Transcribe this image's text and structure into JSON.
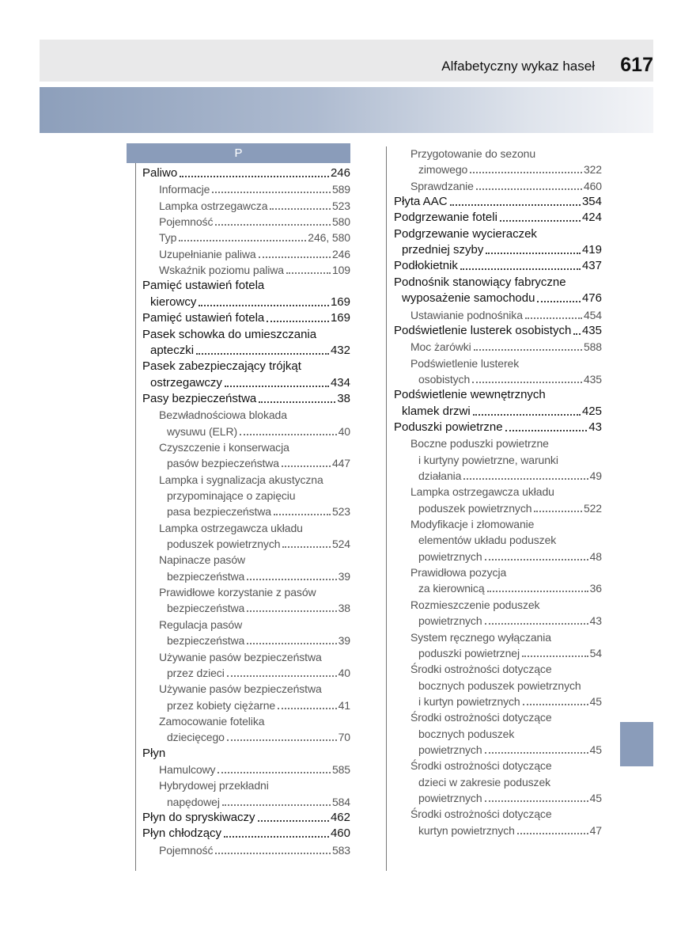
{
  "header": {
    "title": "Alfabetyczny wykaz haseł",
    "page": "617"
  },
  "section": "P",
  "columns": [
    {
      "entries": [
        {
          "text": [
            "Paliwo"
          ],
          "page": "246",
          "sub": [
            {
              "text": [
                "Informacje"
              ],
              "page": "589"
            },
            {
              "text": [
                "Lampka ostrzegawcza"
              ],
              "page": "523"
            },
            {
              "text": [
                "Pojemność"
              ],
              "page": "580"
            },
            {
              "text": [
                "Typ"
              ],
              "page": "246, 580"
            },
            {
              "text": [
                "Uzupełnianie paliwa"
              ],
              "page": "246"
            },
            {
              "text": [
                "Wskaźnik poziomu paliwa"
              ],
              "page": "109"
            }
          ]
        },
        {
          "text": [
            "Pamięć ustawień fotela",
            "kierowcy"
          ],
          "page": "169"
        },
        {
          "text": [
            "Pamięć ustawień fotela"
          ],
          "page": "169"
        },
        {
          "text": [
            "Pasek schowka do umieszczania",
            "apteczki"
          ],
          "page": "432"
        },
        {
          "text": [
            "Pasek zabezpieczający trójkąt",
            "ostrzegawczy"
          ],
          "page": "434"
        },
        {
          "text": [
            "Pasy bezpieczeństwa"
          ],
          "page": "38",
          "sub": [
            {
              "text": [
                "Bezwładnościowa blokada",
                "wysuwu (ELR)"
              ],
              "page": "40"
            },
            {
              "text": [
                "Czyszczenie i konserwacja",
                "pasów bezpieczeństwa"
              ],
              "page": "447"
            },
            {
              "text": [
                "Lampka i sygnalizacja akustyczna",
                "przypominające o zapięciu",
                "pasa bezpieczeństwa"
              ],
              "page": "523"
            },
            {
              "text": [
                "Lampka ostrzegawcza układu",
                "poduszek powietrznych"
              ],
              "page": "524"
            },
            {
              "text": [
                "Napinacze pasów",
                "bezpieczeństwa"
              ],
              "page": "39"
            },
            {
              "text": [
                "Prawidłowe korzystanie z pasów",
                "bezpieczeństwa"
              ],
              "page": "38"
            },
            {
              "text": [
                "Regulacja pasów",
                "bezpieczeństwa"
              ],
              "page": "39"
            },
            {
              "text": [
                "Używanie pasów bezpieczeństwa",
                "przez dzieci"
              ],
              "page": "40"
            },
            {
              "text": [
                "Używanie pasów bezpieczeństwa",
                "przez kobiety ciężarne"
              ],
              "page": "41"
            },
            {
              "text": [
                "Zamocowanie fotelika",
                "dziecięcego"
              ],
              "page": "70"
            }
          ]
        },
        {
          "text": [
            "Płyn"
          ],
          "sub": [
            {
              "text": [
                "Hamulcowy"
              ],
              "page": "585"
            },
            {
              "text": [
                "Hybrydowej przekładni",
                "napędowej"
              ],
              "page": "584"
            }
          ]
        },
        {
          "text": [
            "Płyn do spryskiwaczy"
          ],
          "page": "462"
        },
        {
          "text": [
            "Płyn chłodzący"
          ],
          "page": "460",
          "sub": [
            {
              "text": [
                "Pojemność"
              ],
              "page": "583"
            }
          ]
        }
      ]
    },
    {
      "continued": [
        {
          "text": [
            "Przygotowanie do sezonu",
            "zimowego"
          ],
          "page": "322"
        },
        {
          "text": [
            "Sprawdzanie"
          ],
          "page": "460"
        }
      ],
      "entries": [
        {
          "text": [
            "Płyta AAC"
          ],
          "page": "354"
        },
        {
          "text": [
            "Podgrzewanie foteli"
          ],
          "page": "424"
        },
        {
          "text": [
            "Podgrzewanie wycieraczek",
            "przedniej szyby"
          ],
          "page": "419"
        },
        {
          "text": [
            "Podłokietnik"
          ],
          "page": "437"
        },
        {
          "text": [
            "Podnośnik stanowiący fabryczne",
            "wyposażenie samochodu"
          ],
          "page": "476",
          "sub": [
            {
              "text": [
                "Ustawianie podnośnika"
              ],
              "page": "454"
            }
          ]
        },
        {
          "text": [
            "Podświetlenie lusterek osobistych"
          ],
          "page": "435",
          "sub": [
            {
              "text": [
                "Moc żarówki"
              ],
              "page": "588"
            },
            {
              "text": [
                "Podświetlenie lusterek",
                "osobistych"
              ],
              "page": "435"
            }
          ]
        },
        {
          "text": [
            "Podświetlenie wewnętrznych",
            "klamek drzwi"
          ],
          "page": "425"
        },
        {
          "text": [
            "Poduszki powietrzne"
          ],
          "page": "43",
          "sub": [
            {
              "text": [
                "Boczne poduszki powietrzne",
                "i kurtyny powietrzne, warunki",
                "działania"
              ],
              "page": "49"
            },
            {
              "text": [
                "Lampka ostrzegawcza układu",
                "poduszek powietrznych"
              ],
              "page": "522"
            },
            {
              "text": [
                "Modyfikacje i złomowanie",
                "elementów układu poduszek",
                "powietrznych"
              ],
              "page": "48"
            },
            {
              "text": [
                "Prawidłowa pozycja",
                "za kierownicą"
              ],
              "page": "36"
            },
            {
              "text": [
                "Rozmieszczenie poduszek",
                "powietrznych"
              ],
              "page": "43"
            },
            {
              "text": [
                "System ręcznego wyłączania",
                "poduszki powietrznej"
              ],
              "page": "54"
            },
            {
              "text": [
                "Środki ostrożności dotyczące",
                "bocznych poduszek powietrznych",
                "i kurtyn powietrznych"
              ],
              "page": "45"
            },
            {
              "text": [
                "Środki ostrożności dotyczące",
                "bocznych poduszek",
                "powietrznych"
              ],
              "page": "45"
            },
            {
              "text": [
                "Środki ostrożności dotyczące",
                "dzieci w zakresie poduszek",
                "powietrznych"
              ],
              "page": "45"
            },
            {
              "text": [
                "Środki ostrożności dotyczące",
                "kurtyn powietrznych"
              ],
              "page": "47"
            }
          ]
        }
      ]
    }
  ]
}
